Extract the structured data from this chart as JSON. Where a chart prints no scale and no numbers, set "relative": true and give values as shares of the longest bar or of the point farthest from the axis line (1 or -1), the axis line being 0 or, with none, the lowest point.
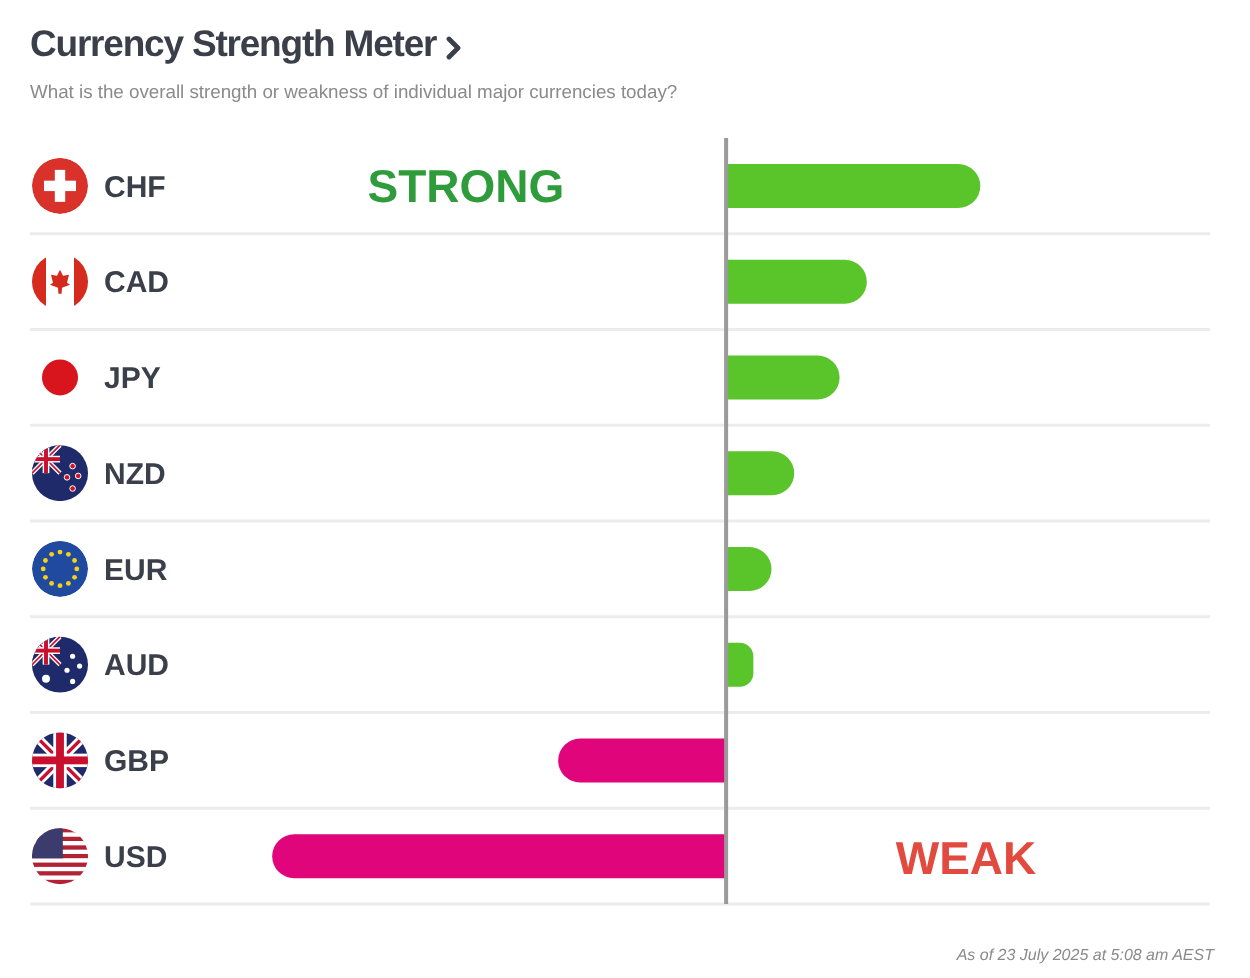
{
  "chart_data": {
    "type": "bar",
    "orientation": "horizontal",
    "relative": true,
    "title": "Currency Strength Meter",
    "subtitle": "What is the overall strength or weakness of individual major currencies today?",
    "categories": [
      "CHF",
      "CAD",
      "JPY",
      "NZD",
      "EUR",
      "AUD",
      "GBP",
      "USD"
    ],
    "values": [
      0.56,
      0.31,
      0.25,
      0.15,
      0.1,
      0.06,
      -0.37,
      -1
    ],
    "colors": [
      "#5ac42b",
      "#5ac42b",
      "#5ac42b",
      "#5ac42b",
      "#5ac42b",
      "#5ac42b",
      "#e0057a",
      "#e0057a"
    ],
    "annotations": [
      "STRONG",
      "WEAK",
      "As of 23 July 2025 at 5:08 am AEST"
    ],
    "grid": "y"
  }
}
